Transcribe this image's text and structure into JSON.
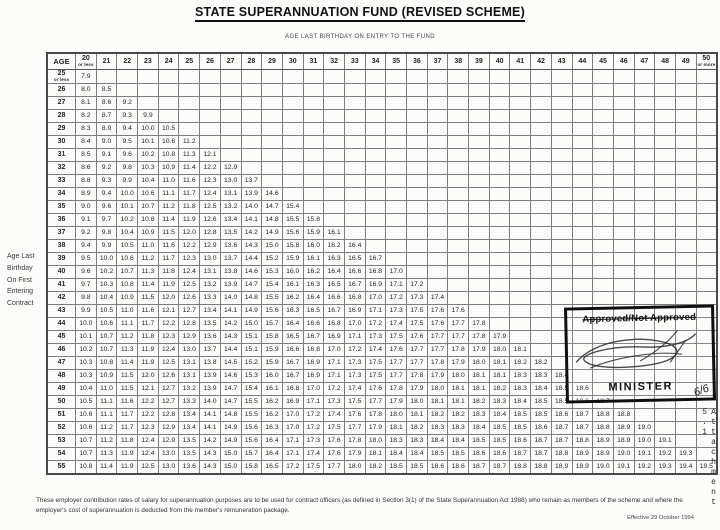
{
  "title": "STATE SUPERANNUATION FUND (REVISED SCHEME)",
  "subtitle": "AGE LAST BIRTHDAY ON ENTRY TO THE FUND",
  "side_label": "Age Last\nBirthday\nOn First\nEntering\nContract",
  "stamp": {
    "approved_text": "Approved/Not Approved",
    "minister_text": "MINISTER",
    "handwriting": "6/6"
  },
  "footnote": "These employer contribution rates of salary for superannuation purposes are to be used for contract officers (as defined in Section 3(1) of the State Superannuation Act 1988) who remain as members of the scheme and where the employer's cost of superannuation is deducted from the member's remuneration package.",
  "effective_date": "Effective 29 October 1994",
  "attachment_label": "Attachment 5.1",
  "chart_data": {
    "type": "table",
    "title": "STATE SUPERANNUATION FUND (REVISED SCHEME)",
    "corner_header": "AGE",
    "col_axis_label": "AGE LAST BIRTHDAY ON ENTRY TO THE FUND",
    "row_axis_label": "Age Last Birthday On First Entering Contract",
    "first_col_sub": "or less",
    "last_col_sub": "or more",
    "col_headers": [
      "20",
      "21",
      "22",
      "23",
      "24",
      "25",
      "26",
      "27",
      "28",
      "29",
      "30",
      "31",
      "32",
      "33",
      "34",
      "35",
      "36",
      "37",
      "38",
      "39",
      "40",
      "41",
      "42",
      "43",
      "44",
      "45",
      "46",
      "47",
      "48",
      "49",
      "50"
    ],
    "rows": [
      {
        "age": "25",
        "age_sub": "or less",
        "values": [
          "7.9"
        ]
      },
      {
        "age": "26",
        "values": [
          "8.0",
          "8.5"
        ]
      },
      {
        "age": "27",
        "values": [
          "8.1",
          "8.6",
          "9.2"
        ]
      },
      {
        "age": "28",
        "values": [
          "8.2",
          "8.7",
          "9.3",
          "9.9"
        ]
      },
      {
        "age": "29",
        "values": [
          "8.3",
          "8.9",
          "9.4",
          "10.0",
          "10.5"
        ]
      },
      {
        "age": "30",
        "values": [
          "8.4",
          "9.0",
          "9.5",
          "10.1",
          "10.6",
          "11.2"
        ]
      },
      {
        "age": "31",
        "values": [
          "8.5",
          "9.1",
          "9.6",
          "10.2",
          "10.8",
          "11.3",
          "12.1"
        ]
      },
      {
        "age": "32",
        "values": [
          "8.6",
          "9.2",
          "9.8",
          "10.3",
          "10.9",
          "11.4",
          "12.2",
          "12.9"
        ]
      },
      {
        "age": "33",
        "values": [
          "8.8",
          "9.3",
          "9.9",
          "10.4",
          "11.0",
          "11.6",
          "12.3",
          "13.0",
          "13.7"
        ]
      },
      {
        "age": "34",
        "values": [
          "8.9",
          "9.4",
          "10.0",
          "10.6",
          "11.1",
          "11.7",
          "12.4",
          "13.1",
          "13.9",
          "14.6"
        ]
      },
      {
        "age": "35",
        "values": [
          "9.0",
          "9.6",
          "10.1",
          "10.7",
          "11.2",
          "11.8",
          "12.5",
          "13.2",
          "14.0",
          "14.7",
          "15.4"
        ]
      },
      {
        "age": "36",
        "values": [
          "9.1",
          "9.7",
          "10.2",
          "10.8",
          "11.4",
          "11.9",
          "12.6",
          "13.4",
          "14.1",
          "14.8",
          "15.5",
          "15.8"
        ]
      },
      {
        "age": "37",
        "values": [
          "9.2",
          "9.8",
          "10.4",
          "10.9",
          "11.5",
          "12.0",
          "12.8",
          "13.5",
          "14.2",
          "14.9",
          "15.6",
          "15.9",
          "16.1"
        ]
      },
      {
        "age": "38",
        "values": [
          "9.4",
          "9.9",
          "10.5",
          "11.0",
          "11.6",
          "12.2",
          "12.9",
          "13.6",
          "14.3",
          "15.0",
          "15.8",
          "16.0",
          "16.2",
          "16.4"
        ]
      },
      {
        "age": "39",
        "values": [
          "9.5",
          "10.0",
          "10.6",
          "11.2",
          "11.7",
          "12.3",
          "13.0",
          "13.7",
          "14.4",
          "15.2",
          "15.9",
          "16.1",
          "16.3",
          "16.5",
          "16.7"
        ]
      },
      {
        "age": "40",
        "values": [
          "9.6",
          "10.2",
          "10.7",
          "11.3",
          "11.8",
          "12.4",
          "13.1",
          "13.8",
          "14.6",
          "15.3",
          "16.0",
          "16.2",
          "16.4",
          "16.6",
          "16.8",
          "17.0"
        ]
      },
      {
        "age": "41",
        "values": [
          "9.7",
          "10.3",
          "10.8",
          "11.4",
          "11.9",
          "12.5",
          "13.2",
          "13.9",
          "14.7",
          "15.4",
          "16.1",
          "16.3",
          "16.5",
          "16.7",
          "16.9",
          "17.1",
          "17.2"
        ]
      },
      {
        "age": "42",
        "values": [
          "9.8",
          "10.4",
          "10.9",
          "11.5",
          "12.0",
          "12.6",
          "13.3",
          "14.0",
          "14.8",
          "15.5",
          "16.2",
          "16.4",
          "16.6",
          "16.8",
          "17.0",
          "17.2",
          "17.3",
          "17.4"
        ]
      },
      {
        "age": "43",
        "values": [
          "9.9",
          "10.5",
          "11.0",
          "11.6",
          "12.1",
          "12.7",
          "13.4",
          "14.1",
          "14.9",
          "15.6",
          "16.3",
          "16.5",
          "16.7",
          "16.9",
          "17.1",
          "17.3",
          "17.5",
          "17.6",
          "17.6"
        ]
      },
      {
        "age": "44",
        "values": [
          "10.0",
          "10.6",
          "11.1",
          "11.7",
          "12.2",
          "12.8",
          "13.5",
          "14.2",
          "15.0",
          "15.7",
          "16.4",
          "16.6",
          "16.8",
          "17.0",
          "17.2",
          "17.4",
          "17.5",
          "17.6",
          "17.7",
          "17.8"
        ]
      },
      {
        "age": "45",
        "values": [
          "10.1",
          "10.7",
          "11.2",
          "11.8",
          "12.3",
          "12.9",
          "13.6",
          "14.3",
          "15.1",
          "15.8",
          "16.5",
          "16.7",
          "16.9",
          "17.1",
          "17.3",
          "17.5",
          "17.6",
          "17.7",
          "17.7",
          "17.8",
          "17.9"
        ]
      },
      {
        "age": "46",
        "values": [
          "10.2",
          "10.7",
          "11.3",
          "11.9",
          "12.4",
          "13.0",
          "13.7",
          "14.4",
          "15.1",
          "15.9",
          "16.6",
          "16.8",
          "17.0",
          "17.2",
          "17.4",
          "17.6",
          "17.7",
          "17.7",
          "17.8",
          "17.9",
          "18.0",
          "18.1"
        ]
      },
      {
        "age": "47",
        "values": [
          "10.3",
          "10.8",
          "11.4",
          "11.9",
          "12.5",
          "13.1",
          "13.8",
          "14.5",
          "15.2",
          "15.9",
          "16.7",
          "16.9",
          "17.1",
          "17.3",
          "17.5",
          "17.7",
          "17.7",
          "17.8",
          "17.9",
          "18.0",
          "18.1",
          "18.2",
          "18.2"
        ]
      },
      {
        "age": "48",
        "values": [
          "10.3",
          "10.9",
          "11.5",
          "12.0",
          "12.6",
          "13.1",
          "13.9",
          "14.6",
          "15.3",
          "16.0",
          "16.7",
          "16.9",
          "17.1",
          "17.3",
          "17.5",
          "17.7",
          "17.8",
          "17.9",
          "18.0",
          "18.1",
          "18.1",
          "18.3",
          "18.3",
          "18.4"
        ]
      },
      {
        "age": "49",
        "values": [
          "10.4",
          "11.0",
          "11.5",
          "12.1",
          "12.7",
          "13.2",
          "13.9",
          "14.7",
          "15.4",
          "16.1",
          "16.8",
          "17.0",
          "17.2",
          "17.4",
          "17.6",
          "17.8",
          "17.9",
          "18.0",
          "18.1",
          "18.1",
          "18.2",
          "18.3",
          "18.4",
          "18.5",
          "18.6"
        ]
      },
      {
        "age": "50",
        "values": [
          "10.5",
          "11.1",
          "11.6",
          "12.2",
          "12.7",
          "13.3",
          "14.0",
          "14.7",
          "15.5",
          "16.2",
          "16.9",
          "17.1",
          "17.3",
          "17.5",
          "17.7",
          "17.9",
          "18.0",
          "18.1",
          "18.1",
          "18.2",
          "18.3",
          "18.4",
          "18.5",
          "18.5",
          "18.6",
          "18.7"
        ]
      },
      {
        "age": "51",
        "values": [
          "10.6",
          "11.1",
          "11.7",
          "12.2",
          "12.8",
          "13.4",
          "14.1",
          "14.8",
          "15.5",
          "16.2",
          "17.0",
          "17.2",
          "17.4",
          "17.6",
          "17.8",
          "18.0",
          "18.1",
          "18.2",
          "18.2",
          "18.3",
          "18.4",
          "18.5",
          "18.5",
          "18.6",
          "18.7",
          "18.8",
          "18.8"
        ]
      },
      {
        "age": "52",
        "values": [
          "10.6",
          "11.2",
          "11.7",
          "12.3",
          "12.9",
          "13.4",
          "14.1",
          "14.9",
          "15.6",
          "16.3",
          "17.0",
          "17.2",
          "17.5",
          "17.7",
          "17.9",
          "18.1",
          "18.2",
          "18.3",
          "18.3",
          "18.4",
          "18.5",
          "18.5",
          "18.6",
          "18.7",
          "18.7",
          "18.8",
          "18.9",
          "19.0"
        ]
      },
      {
        "age": "53",
        "values": [
          "10.7",
          "11.2",
          "11.8",
          "12.4",
          "12.9",
          "13.5",
          "14.2",
          "14.9",
          "15.6",
          "16.4",
          "17.1",
          "17.3",
          "17.6",
          "17.8",
          "18.0",
          "18.3",
          "18.3",
          "18.4",
          "18.4",
          "18.5",
          "18.5",
          "18.6",
          "18.7",
          "18.7",
          "18.8",
          "18.9",
          "18.9",
          "19.0",
          "19.1"
        ]
      },
      {
        "age": "54",
        "values": [
          "10.7",
          "11.3",
          "11.9",
          "12.4",
          "13.0",
          "13.5",
          "14.3",
          "15.0",
          "15.7",
          "16.4",
          "17.1",
          "17.4",
          "17.6",
          "17.9",
          "18.1",
          "18.4",
          "18.4",
          "18.5",
          "18.5",
          "18.6",
          "18.6",
          "18.7",
          "18.7",
          "18.8",
          "18.9",
          "18.9",
          "19.0",
          "19.1",
          "19.2",
          "19.3"
        ]
      },
      {
        "age": "55",
        "values": [
          "10.8",
          "11.4",
          "11.9",
          "12.5",
          "13.0",
          "13.6",
          "14.3",
          "15.0",
          "15.8",
          "16.5",
          "17.2",
          "17.5",
          "17.7",
          "18.0",
          "18.2",
          "18.5",
          "18.5",
          "18.6",
          "18.6",
          "18.7",
          "18.7",
          "18.8",
          "18.8",
          "18.9",
          "18.9",
          "19.0",
          "19.1",
          "19.2",
          "19.3",
          "19.4",
          "19.5"
        ]
      }
    ]
  }
}
